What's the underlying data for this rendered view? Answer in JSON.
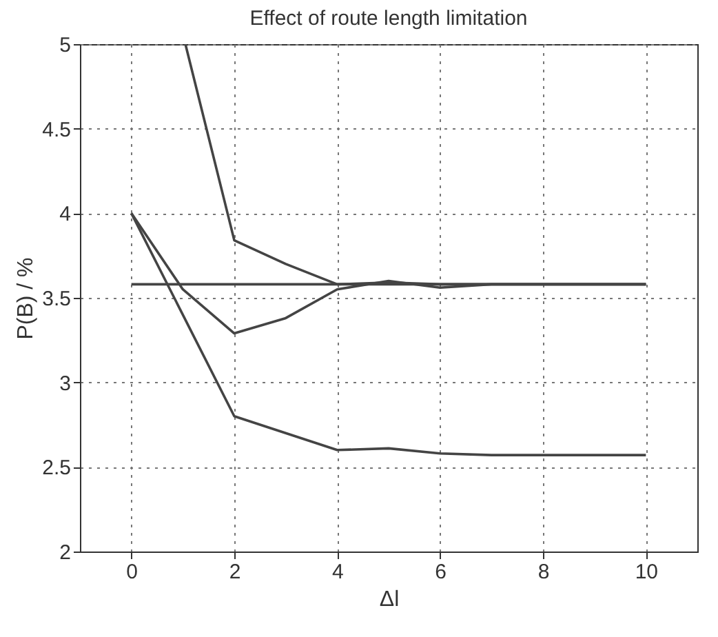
{
  "chart_data": {
    "type": "line",
    "title": "Effect of route length limitation",
    "xlabel": "Δl",
    "ylabel": "P(B) / %",
    "xlim": [
      -1,
      11
    ],
    "ylim": [
      2,
      5
    ],
    "xticks": [
      0,
      2,
      4,
      6,
      8,
      10
    ],
    "yticks": [
      2,
      2.5,
      3,
      3.5,
      4,
      4.5,
      5
    ],
    "grid": true,
    "line_style": "solid",
    "series": [
      {
        "color": "#444444",
        "x": [
          1.05,
          2,
          3,
          4,
          5,
          6,
          7,
          8,
          9,
          10
        ],
        "values": [
          5,
          3.84,
          3.7,
          3.58,
          3.59,
          3.58,
          3.58,
          3.58,
          3.58,
          3.58
        ]
      },
      {
        "color": "#444444",
        "x": [
          0,
          1,
          2,
          3,
          4,
          5,
          6,
          7,
          8,
          9,
          10
        ],
        "values": [
          4,
          3.55,
          3.29,
          3.38,
          3.55,
          3.6,
          3.56,
          3.58,
          3.58,
          3.58,
          3.58
        ]
      },
      {
        "color": "#444444",
        "x": [
          0,
          2,
          4,
          5,
          6,
          7,
          8,
          9,
          10
        ],
        "values": [
          4,
          2.8,
          2.6,
          2.61,
          2.58,
          2.57,
          2.57,
          2.57,
          2.57
        ]
      },
      {
        "color": "#444444",
        "x": [
          0,
          10
        ],
        "values": [
          3.58,
          3.58
        ]
      }
    ]
  }
}
